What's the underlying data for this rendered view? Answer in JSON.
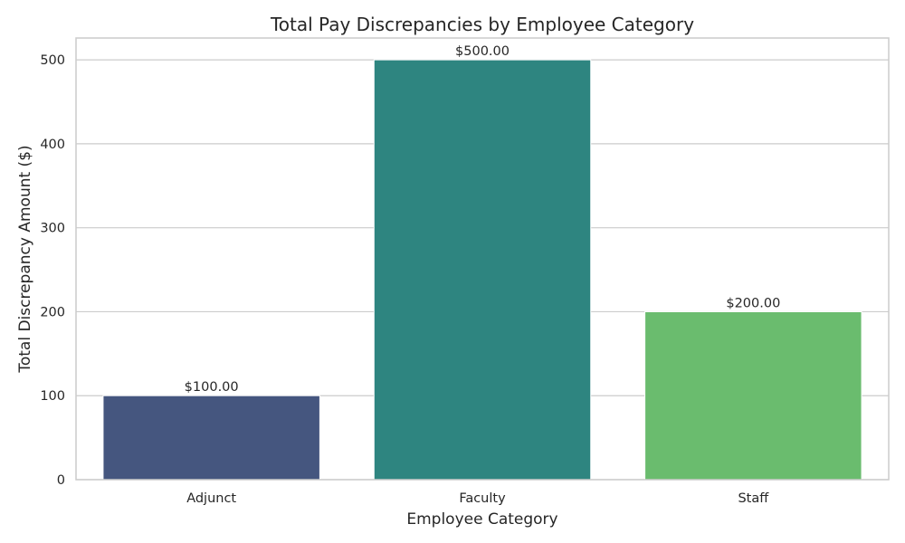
{
  "chart_data": {
    "type": "bar",
    "title": "Total Pay Discrepancies by Employee Category",
    "xlabel": "Employee Category",
    "ylabel": "Total Discrepancy Amount ($)",
    "categories": [
      "Adjunct",
      "Faculty",
      "Staff"
    ],
    "values": [
      100,
      500,
      200
    ],
    "data_labels": [
      "$100.00",
      "$500.00",
      "$200.00"
    ],
    "colors": [
      "#45567f",
      "#2e8580",
      "#6abc6e"
    ],
    "ylim": [
      0,
      526
    ],
    "yticks": [
      0,
      100,
      200,
      300,
      400,
      500
    ],
    "grid": true,
    "legend": "none"
  }
}
